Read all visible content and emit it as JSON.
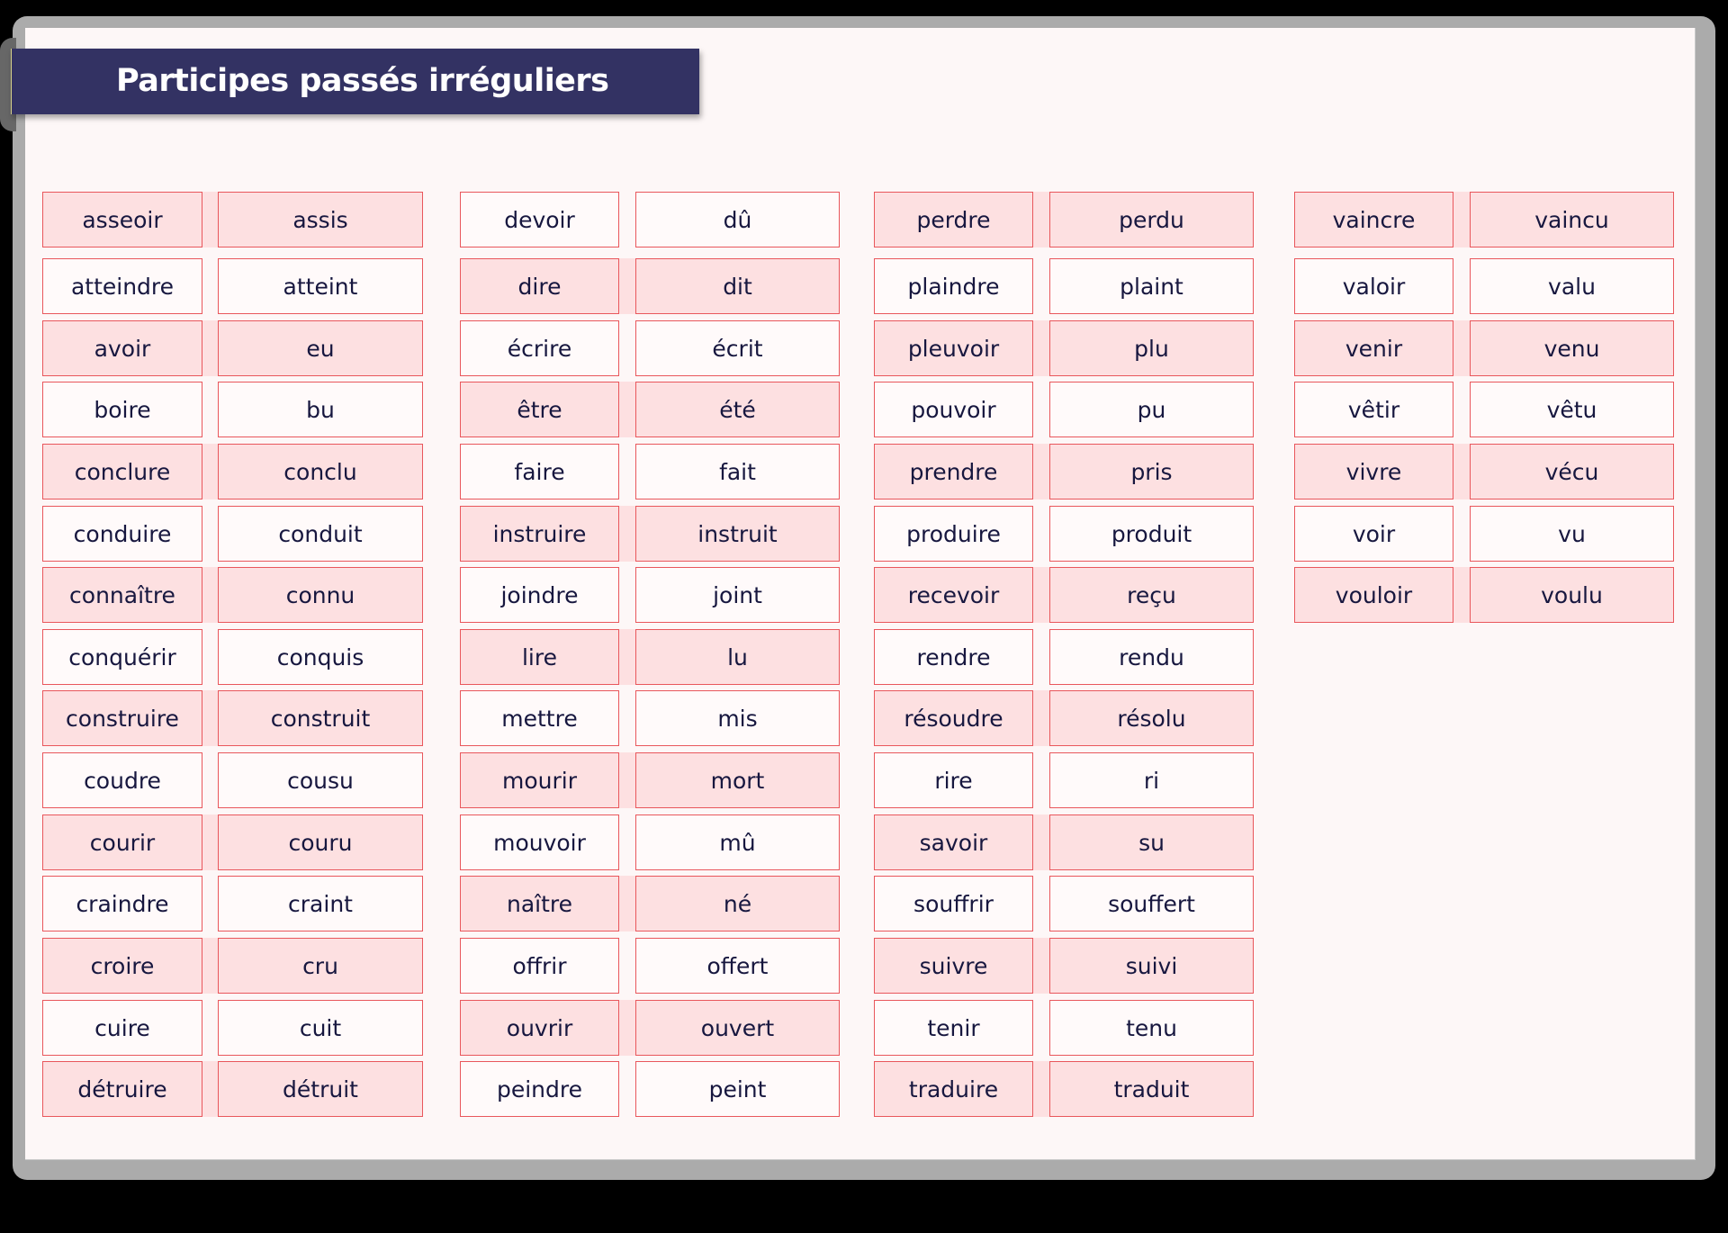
{
  "title": "Participes passés irréguliers",
  "colors": {
    "title_bar": "#333263",
    "title_text": "#ffffff",
    "box_border": "#e9575c",
    "highlight_fill": "#fde0e1",
    "plain_fill": "#fffafa",
    "word_text": "#17173f",
    "panel_bg": "#fdf7f7",
    "frame": "#ababab"
  },
  "columns": [
    {
      "rows": [
        {
          "infinitive": "asseoir",
          "participle": "assis",
          "highlight": true
        },
        {
          "infinitive": "atteindre",
          "participle": "atteint",
          "highlight": false
        },
        {
          "infinitive": "avoir",
          "participle": "eu",
          "highlight": true
        },
        {
          "infinitive": "boire",
          "participle": "bu",
          "highlight": false
        },
        {
          "infinitive": "conclure",
          "participle": "conclu",
          "highlight": true
        },
        {
          "infinitive": "conduire",
          "participle": "conduit",
          "highlight": false
        },
        {
          "infinitive": "connaître",
          "participle": "connu",
          "highlight": true
        },
        {
          "infinitive": "conquérir",
          "participle": "conquis",
          "highlight": false
        },
        {
          "infinitive": "construire",
          "participle": "construit",
          "highlight": true
        },
        {
          "infinitive": "coudre",
          "participle": "cousu",
          "highlight": false
        },
        {
          "infinitive": "courir",
          "participle": "couru",
          "highlight": true
        },
        {
          "infinitive": "craindre",
          "participle": "craint",
          "highlight": false
        },
        {
          "infinitive": "croire",
          "participle": "cru",
          "highlight": true
        },
        {
          "infinitive": "cuire",
          "participle": "cuit",
          "highlight": false
        },
        {
          "infinitive": "détruire",
          "participle": "détruit",
          "highlight": true
        }
      ]
    },
    {
      "rows": [
        {
          "infinitive": "devoir",
          "participle": "dû",
          "highlight": false
        },
        {
          "infinitive": "dire",
          "participle": "dit",
          "highlight": true
        },
        {
          "infinitive": "écrire",
          "participle": "écrit",
          "highlight": false
        },
        {
          "infinitive": "être",
          "participle": "été",
          "highlight": true
        },
        {
          "infinitive": "faire",
          "participle": "fait",
          "highlight": false
        },
        {
          "infinitive": "instruire",
          "participle": "instruit",
          "highlight": true
        },
        {
          "infinitive": "joindre",
          "participle": "joint",
          "highlight": false
        },
        {
          "infinitive": "lire",
          "participle": "lu",
          "highlight": true
        },
        {
          "infinitive": "mettre",
          "participle": "mis",
          "highlight": false
        },
        {
          "infinitive": "mourir",
          "participle": "mort",
          "highlight": true
        },
        {
          "infinitive": "mouvoir",
          "participle": "mû",
          "highlight": false
        },
        {
          "infinitive": "naître",
          "participle": "né",
          "highlight": true
        },
        {
          "infinitive": "offrir",
          "participle": "offert",
          "highlight": false
        },
        {
          "infinitive": "ouvrir",
          "participle": "ouvert",
          "highlight": true
        },
        {
          "infinitive": "peindre",
          "participle": "peint",
          "highlight": false
        }
      ]
    },
    {
      "rows": [
        {
          "infinitive": "perdre",
          "participle": "perdu",
          "highlight": true
        },
        {
          "infinitive": "plaindre",
          "participle": "plaint",
          "highlight": false
        },
        {
          "infinitive": "pleuvoir",
          "participle": "plu",
          "highlight": true
        },
        {
          "infinitive": "pouvoir",
          "participle": "pu",
          "highlight": false
        },
        {
          "infinitive": "prendre",
          "participle": "pris",
          "highlight": true
        },
        {
          "infinitive": "produire",
          "participle": "produit",
          "highlight": false
        },
        {
          "infinitive": "recevoir",
          "participle": "reçu",
          "highlight": true
        },
        {
          "infinitive": "rendre",
          "participle": "rendu",
          "highlight": false
        },
        {
          "infinitive": "résoudre",
          "participle": "résolu",
          "highlight": true
        },
        {
          "infinitive": "rire",
          "participle": "ri",
          "highlight": false
        },
        {
          "infinitive": "savoir",
          "participle": "su",
          "highlight": true
        },
        {
          "infinitive": "souffrir",
          "participle": "souffert",
          "highlight": false
        },
        {
          "infinitive": "suivre",
          "participle": "suivi",
          "highlight": true
        },
        {
          "infinitive": "tenir",
          "participle": "tenu",
          "highlight": false
        },
        {
          "infinitive": "traduire",
          "participle": "traduit",
          "highlight": true
        }
      ]
    },
    {
      "rows": [
        {
          "infinitive": "vaincre",
          "participle": "vaincu",
          "highlight": true
        },
        {
          "infinitive": "valoir",
          "participle": "valu",
          "highlight": false
        },
        {
          "infinitive": "venir",
          "participle": "venu",
          "highlight": true
        },
        {
          "infinitive": "vêtir",
          "participle": "vêtu",
          "highlight": false
        },
        {
          "infinitive": "vivre",
          "participle": "vécu",
          "highlight": true
        },
        {
          "infinitive": "voir",
          "participle": "vu",
          "highlight": false
        },
        {
          "infinitive": "vouloir",
          "participle": "voulu",
          "highlight": true
        }
      ]
    }
  ]
}
